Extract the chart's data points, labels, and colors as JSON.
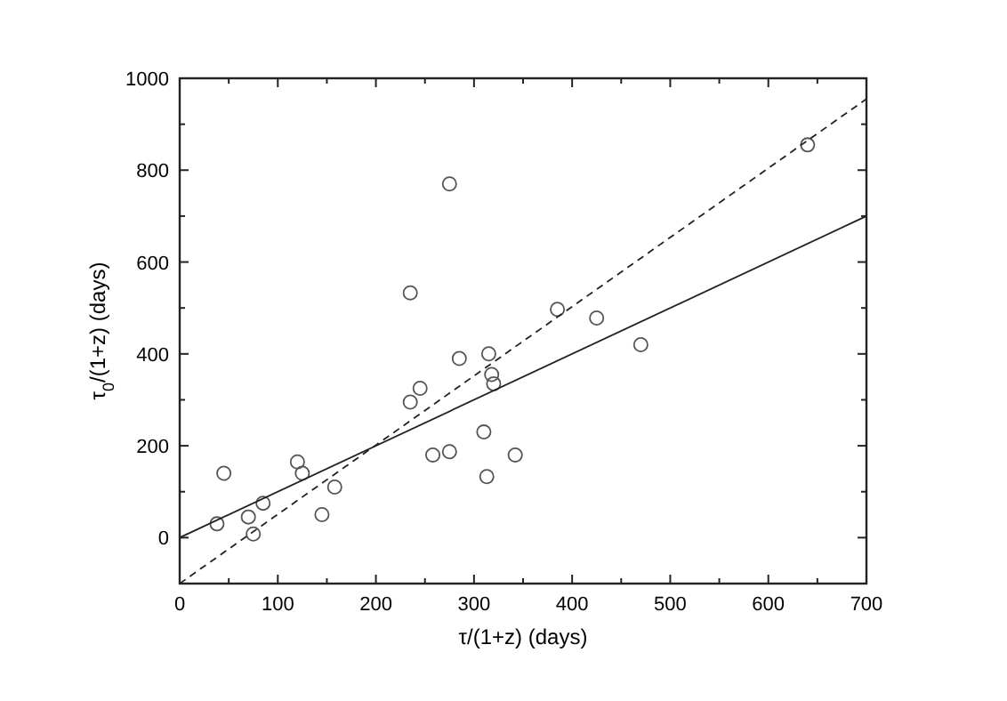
{
  "chart_data": {
    "type": "scatter",
    "xlabel": "τ/(1+z) (days)",
    "ylabel": "τ$_{0}$/(1+z) (days)",
    "xlim": [
      0,
      700
    ],
    "ylim": [
      -100,
      1000
    ],
    "xticks": [
      0,
      {
        "value": 50,
        "label": null
      },
      100,
      {
        "value": 150,
        "label": null
      },
      200,
      {
        "value": 250,
        "label": null
      },
      300,
      {
        "value": 350,
        "label": null
      },
      400,
      {
        "value": 450,
        "label": null
      },
      500,
      {
        "value": 550,
        "label": null
      },
      600,
      {
        "value": 650,
        "label": null
      },
      700
    ],
    "yticks": [
      {
        "value": -100,
        "label": null
      },
      0,
      {
        "value": 100,
        "label": null
      },
      200,
      {
        "value": 300,
        "label": null
      },
      400,
      {
        "value": 500,
        "label": null
      },
      600,
      {
        "value": 700,
        "label": null
      },
      800,
      {
        "value": 900,
        "label": null
      },
      1000
    ],
    "grid": false,
    "series": [
      {
        "marker": "circle",
        "color": "#555555",
        "x": [
          38,
          45,
          70,
          75,
          85,
          120,
          125,
          145,
          158,
          235,
          235,
          245,
          258,
          275,
          275,
          285,
          310,
          313,
          315,
          318,
          320,
          342,
          385,
          425,
          470,
          640
        ],
        "values": [
          30,
          140,
          45,
          8,
          75,
          165,
          140,
          50,
          110,
          295,
          533,
          325,
          180,
          770,
          187,
          390,
          230,
          133,
          400,
          355,
          335,
          180,
          497,
          478,
          420,
          855
        ]
      },
      {
        "type": "line",
        "color": "#222222",
        "line_style": "solid",
        "x": [
          0,
          700
        ],
        "values": [
          0,
          700
        ]
      },
      {
        "type": "line",
        "color": "#222222",
        "line_style": "dashed",
        "x": [
          0,
          700
        ],
        "values": [
          -100,
          955
        ]
      }
    ]
  }
}
